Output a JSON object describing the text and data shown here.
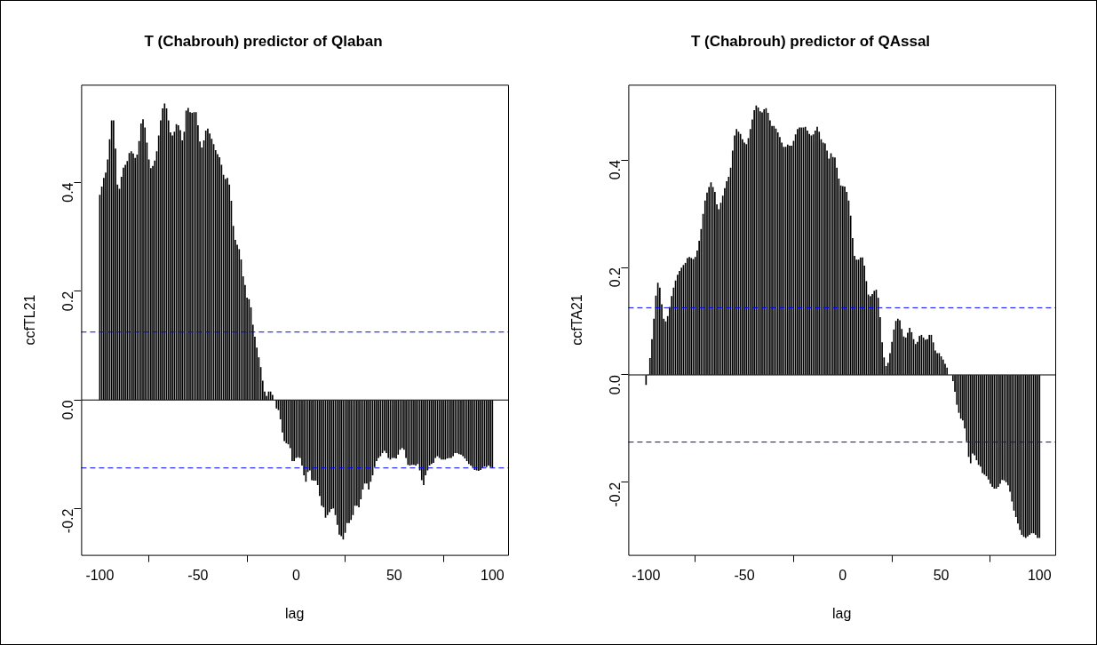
{
  "chart_data": [
    {
      "type": "bar",
      "title": "T (Chabrouh) predictor of Qlaban",
      "xlabel": "lag",
      "ylabel": "ccfTL21",
      "xlim": [
        -109.5,
        108
      ],
      "xticks": [
        -100,
        -50,
        0,
        50,
        100
      ],
      "ylim": [
        -0.285,
        0.58
      ],
      "yticks": [
        {
          "value": -0.2,
          "label": "-0.2"
        },
        {
          "value": 0,
          "label": "0.0"
        },
        {
          "value": 0.2,
          "label": "0.2"
        },
        {
          "value": 0.4,
          "label": "0.4"
        }
      ],
      "grid": false,
      "legend": false,
      "x": [
        -100,
        -99,
        -98,
        -97,
        -96,
        -95,
        -94,
        -93,
        -92,
        -91,
        -90,
        -89,
        -88,
        -87,
        -86,
        -85,
        -84,
        -83,
        -82,
        -81,
        -80,
        -79,
        -78,
        -77,
        -76,
        -75,
        -74,
        -73,
        -72,
        -71,
        -70,
        -69,
        -68,
        -67,
        -66,
        -65,
        -64,
        -63,
        -62,
        -61,
        -60,
        -59,
        -58,
        -57,
        -56,
        -55,
        -54,
        -53,
        -52,
        -51,
        -50,
        -49,
        -48,
        -47,
        -46,
        -45,
        -44,
        -43,
        -42,
        -41,
        -40,
        -39,
        -38,
        -37,
        -36,
        -35,
        -34,
        -33,
        -32,
        -31,
        -30,
        -29,
        -28,
        -27,
        -26,
        -25,
        -24,
        -23,
        -22,
        -21,
        -20,
        -19,
        -18,
        -17,
        -16,
        -15,
        -14,
        -13,
        -12,
        -11,
        -10,
        -9,
        -8,
        -7,
        -6,
        -5,
        -4,
        -3,
        -2,
        -1,
        0,
        1,
        2,
        3,
        4,
        5,
        6,
        7,
        8,
        9,
        10,
        11,
        12,
        13,
        14,
        15,
        16,
        17,
        18,
        19,
        20,
        21,
        22,
        23,
        24,
        25,
        26,
        27,
        28,
        29,
        30,
        31,
        32,
        33,
        34,
        35,
        36,
        37,
        38,
        39,
        40,
        41,
        42,
        43,
        44,
        45,
        46,
        47,
        48,
        49,
        50,
        51,
        52,
        53,
        54,
        55,
        56,
        57,
        58,
        59,
        60,
        61,
        62,
        63,
        64,
        65,
        66,
        67,
        68,
        69,
        70,
        71,
        72,
        73,
        74,
        75,
        76,
        77,
        78,
        79,
        80,
        81,
        82,
        83,
        84,
        85,
        86,
        87,
        88,
        89,
        90,
        91,
        92,
        93,
        94,
        95,
        96,
        97,
        98,
        99,
        100
      ],
      "series": [
        {
          "color": "#000000",
          "values": [
            0.377,
            0.392,
            0.408,
            0.418,
            0.442,
            0.479,
            0.514,
            0.514,
            0.462,
            0.396,
            0.388,
            0.41,
            0.427,
            0.432,
            0.439,
            0.454,
            0.457,
            0.453,
            0.445,
            0.451,
            0.476,
            0.508,
            0.516,
            0.501,
            0.473,
            0.442,
            0.426,
            0.43,
            0.44,
            0.457,
            0.486,
            0.514,
            0.536,
            0.545,
            0.536,
            0.514,
            0.492,
            0.486,
            0.493,
            0.507,
            0.505,
            0.496,
            0.477,
            0.493,
            0.532,
            0.537,
            0.529,
            0.528,
            0.529,
            0.529,
            0.505,
            0.475,
            0.464,
            0.477,
            0.495,
            0.499,
            0.49,
            0.48,
            0.47,
            0.459,
            0.452,
            0.446,
            0.432,
            0.414,
            0.406,
            0.408,
            0.396,
            0.366,
            0.32,
            0.294,
            0.285,
            0.277,
            0.258,
            0.227,
            0.211,
            0.188,
            0.185,
            0.17,
            0.138,
            0.116,
            0.096,
            0.078,
            0.06,
            0.035,
            0.015,
            0.007,
            0.015,
            0.015,
            0.009,
            null,
            -0.015,
            -0.018,
            -0.035,
            -0.059,
            -0.075,
            -0.079,
            -0.081,
            -0.088,
            -0.112,
            -0.112,
            -0.106,
            -0.105,
            -0.106,
            -0.12,
            -0.138,
            -0.15,
            -0.132,
            -0.129,
            -0.147,
            -0.148,
            -0.148,
            -0.156,
            -0.176,
            -0.194,
            -0.197,
            -0.216,
            -0.211,
            -0.206,
            -0.2,
            -0.199,
            -0.211,
            -0.229,
            -0.247,
            -0.25,
            -0.256,
            -0.244,
            -0.226,
            -0.226,
            -0.22,
            -0.211,
            -0.194,
            -0.194,
            -0.197,
            -0.182,
            -0.164,
            -0.153,
            -0.153,
            -0.164,
            -0.15,
            -0.138,
            -0.123,
            -0.112,
            -0.106,
            -0.103,
            -0.097,
            -0.093,
            -0.097,
            -0.106,
            -0.109,
            -0.106,
            -0.106,
            -0.107,
            -0.1,
            -0.091,
            -0.088,
            -0.091,
            -0.106,
            -0.119,
            -0.12,
            -0.119,
            -0.119,
            -0.12,
            -0.117,
            -0.129,
            -0.147,
            -0.156,
            -0.138,
            -0.129,
            -0.12,
            -0.117,
            -0.115,
            -0.106,
            -0.103,
            -0.106,
            -0.109,
            -0.109,
            -0.109,
            -0.107,
            -0.106,
            -0.106,
            -0.103,
            -0.097,
            -0.097,
            -0.099,
            -0.1,
            -0.103,
            -0.107,
            -0.112,
            -0.117,
            -0.12,
            -0.123,
            -0.128,
            -0.129,
            -0.13,
            -0.128,
            -0.124,
            -0.122,
            -0.123,
            -0.12,
            -0.123,
            -0.124
          ]
        }
      ],
      "ref_lines": [
        {
          "axis": "y",
          "value": 0,
          "color": "#000000",
          "line_style": "solid"
        },
        {
          "axis": "y",
          "value": 0.125,
          "color": "#0000ff",
          "line_style": "dashed"
        },
        {
          "axis": "y",
          "value": -0.125,
          "color": "#0000ff",
          "line_style": "dashed"
        }
      ]
    },
    {
      "type": "bar",
      "title": "T (Chabrouh) predictor of QAssal",
      "xlabel": "lag",
      "ylabel": "ccfTA21",
      "xlim": [
        -109,
        108
      ],
      "xticks": [
        -100,
        -50,
        0,
        50,
        100
      ],
      "ylim": [
        -0.335,
        0.54
      ],
      "yticks": [
        {
          "value": -0.2,
          "label": "-0.2"
        },
        {
          "value": 0,
          "label": "0.0"
        },
        {
          "value": 0.2,
          "label": "0.2"
        },
        {
          "value": 0.4,
          "label": "0.4"
        }
      ],
      "grid": false,
      "legend": false,
      "x": [
        -100,
        -99,
        -98,
        -97,
        -96,
        -95,
        -94,
        -93,
        -92,
        -91,
        -90,
        -89,
        -88,
        -87,
        -86,
        -85,
        -84,
        -83,
        -82,
        -81,
        -80,
        -79,
        -78,
        -77,
        -76,
        -75,
        -74,
        -73,
        -72,
        -71,
        -70,
        -69,
        -68,
        -67,
        -66,
        -65,
        -64,
        -63,
        -62,
        -61,
        -60,
        -59,
        -58,
        -57,
        -56,
        -55,
        -54,
        -53,
        -52,
        -51,
        -50,
        -49,
        -48,
        -47,
        -46,
        -45,
        -44,
        -43,
        -42,
        -41,
        -40,
        -39,
        -38,
        -37,
        -36,
        -35,
        -34,
        -33,
        -32,
        -31,
        -30,
        -29,
        -28,
        -27,
        -26,
        -25,
        -24,
        -23,
        -22,
        -21,
        -20,
        -19,
        -18,
        -17,
        -16,
        -15,
        -14,
        -13,
        -12,
        -11,
        -10,
        -9,
        -8,
        -7,
        -6,
        -5,
        -4,
        -3,
        -2,
        -1,
        0,
        1,
        2,
        3,
        4,
        5,
        6,
        7,
        8,
        9,
        10,
        11,
        12,
        13,
        14,
        15,
        16,
        17,
        18,
        19,
        20,
        21,
        22,
        23,
        24,
        25,
        26,
        27,
        28,
        29,
        30,
        31,
        32,
        33,
        34,
        35,
        36,
        37,
        38,
        39,
        40,
        41,
        42,
        43,
        44,
        45,
        46,
        47,
        48,
        49,
        50,
        51,
        52,
        53,
        54,
        55,
        56,
        57,
        58,
        59,
        60,
        61,
        62,
        63,
        64,
        65,
        66,
        67,
        68,
        69,
        70,
        71,
        72,
        73,
        74,
        75,
        76,
        77,
        78,
        79,
        80,
        81,
        82,
        83,
        84,
        85,
        86,
        87,
        88,
        89,
        90,
        91,
        92,
        93,
        94,
        95,
        96,
        97,
        98,
        99,
        100
      ],
      "series": [
        {
          "color": "#000000",
          "values": [
            -0.018,
            0.0,
            0.031,
            0.066,
            0.104,
            0.147,
            0.171,
            0.162,
            0.131,
            0.104,
            0.099,
            0.109,
            0.126,
            0.146,
            0.162,
            0.175,
            0.186,
            0.193,
            0.199,
            0.204,
            0.208,
            0.217,
            0.219,
            0.217,
            0.215,
            0.219,
            0.231,
            0.249,
            0.271,
            0.299,
            0.324,
            0.339,
            0.349,
            0.358,
            0.349,
            0.34,
            0.317,
            0.308,
            0.32,
            0.333,
            0.347,
            0.36,
            0.368,
            0.385,
            0.417,
            0.445,
            0.457,
            0.452,
            0.448,
            0.438,
            0.432,
            0.429,
            0.44,
            0.457,
            0.475,
            0.492,
            0.501,
            0.497,
            0.49,
            0.488,
            0.494,
            0.496,
            0.487,
            0.473,
            0.463,
            0.463,
            0.458,
            0.451,
            0.442,
            0.432,
            0.424,
            0.424,
            0.428,
            0.426,
            0.426,
            0.435,
            0.447,
            0.457,
            0.46,
            0.46,
            0.46,
            0.461,
            0.454,
            0.448,
            0.445,
            0.447,
            0.454,
            0.461,
            0.452,
            0.438,
            0.432,
            0.43,
            0.417,
            0.402,
            0.412,
            0.405,
            0.404,
            0.385,
            0.365,
            0.352,
            0.351,
            0.35,
            0.34,
            0.324,
            0.296,
            0.254,
            0.221,
            0.214,
            0.214,
            0.218,
            0.218,
            0.203,
            0.174,
            0.149,
            0.146,
            0.15,
            0.156,
            0.158,
            0.143,
            0.107,
            0.06,
            0.032,
            0.016,
            0.022,
            0.04,
            0.061,
            0.084,
            0.1,
            0.104,
            0.101,
            0.085,
            0.071,
            0.069,
            0.078,
            0.087,
            0.079,
            0.066,
            0.057,
            0.061,
            0.072,
            0.074,
            0.069,
            0.065,
            0.066,
            0.074,
            0.074,
            0.06,
            0.045,
            0.04,
            0.04,
            0.034,
            0.028,
            0.02,
            0.013,
            null,
            null,
            -0.011,
            -0.031,
            -0.055,
            -0.07,
            -0.081,
            -0.084,
            -0.099,
            -0.123,
            -0.152,
            -0.164,
            -0.146,
            -0.149,
            -0.158,
            -0.167,
            -0.17,
            -0.182,
            -0.185,
            -0.188,
            -0.194,
            -0.202,
            -0.208,
            -0.211,
            -0.211,
            -0.208,
            -0.202,
            -0.195,
            -0.196,
            -0.199,
            -0.205,
            -0.217,
            -0.235,
            -0.252,
            -0.264,
            -0.276,
            -0.288,
            -0.297,
            -0.301,
            -0.303,
            -0.3,
            -0.297,
            -0.294,
            -0.294,
            -0.297,
            -0.303,
            -0.303
          ]
        }
      ],
      "ref_lines": [
        {
          "axis": "y",
          "value": 0,
          "color": "#000000",
          "line_style": "solid"
        },
        {
          "axis": "y",
          "value": 0.125,
          "color": "#0000ff",
          "line_style": "dashed"
        },
        {
          "axis": "y",
          "value": -0.125,
          "color": "#0000ff",
          "line_style": "dashed"
        }
      ]
    }
  ]
}
